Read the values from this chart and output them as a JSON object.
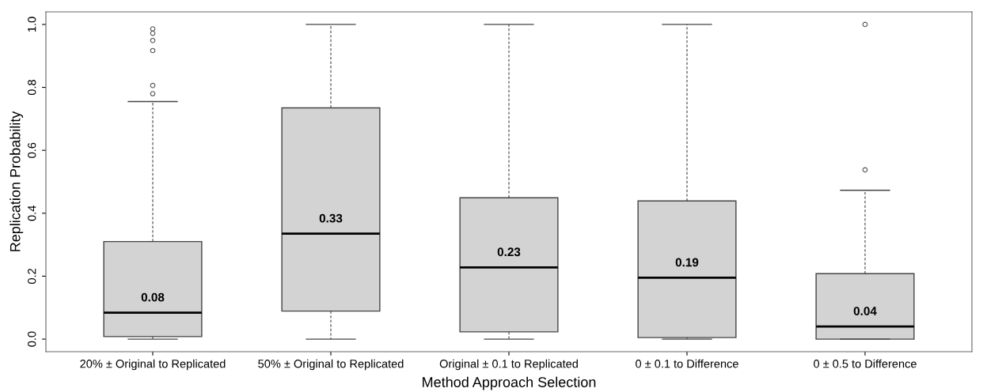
{
  "chart_data": {
    "type": "box",
    "xlabel": "Method Approach Selection",
    "ylabel": "Replication Probability",
    "categories": [
      "20% ± Original to Replicated",
      "50% ± Original to Replicated",
      "Original ± 0.1 to Replicated",
      "0 ± 0.1 to Difference",
      "0 ± 0.5 to Difference"
    ],
    "color": "#d3d3d3",
    "ylim": [
      -0.04,
      1.04
    ],
    "yticks": [
      {
        "value": 0,
        "label": "0.0"
      },
      0.2,
      0.4,
      0.6,
      0.8,
      {
        "value": 1,
        "label": "1.0"
      }
    ],
    "grid": false,
    "legend": false,
    "boxes": [
      {
        "low": 0,
        "q1": 0.008,
        "median": 0.084,
        "q3": 0.31,
        "high": 0.755,
        "outliers": [
          0.78,
          0.806,
          0.917,
          0.949,
          0.972,
          0.986
        ]
      },
      {
        "low": 0,
        "q1": 0.089,
        "median": 0.335,
        "q3": 0.735,
        "high": 1.0
      },
      {
        "low": 0,
        "q1": 0.023,
        "median": 0.228,
        "q3": 0.449,
        "high": 1.0
      },
      {
        "low": 0,
        "q1": 0.005,
        "median": 0.195,
        "q3": 0.439,
        "high": 1.0
      },
      {
        "low": 0,
        "q1": 0,
        "median": 0.04,
        "q3": 0.208,
        "high": 0.473,
        "outliers": [
          0.538,
          1.0
        ]
      }
    ],
    "annotations": [
      {
        "text": "0.08",
        "x": "20% ± Original to Replicated",
        "y": 0.084
      },
      {
        "text": "0.33",
        "x": "50% ± Original to Replicated",
        "y": 0.335
      },
      {
        "text": "0.23",
        "x": "Original ± 0.1 to Replicated",
        "y": 0.228
      },
      {
        "text": "0.19",
        "x": "0 ± 0.1 to Difference",
        "y": 0.195
      },
      {
        "text": "0.04",
        "x": "0 ± 0.5 to Difference",
        "y": 0.04
      }
    ]
  }
}
